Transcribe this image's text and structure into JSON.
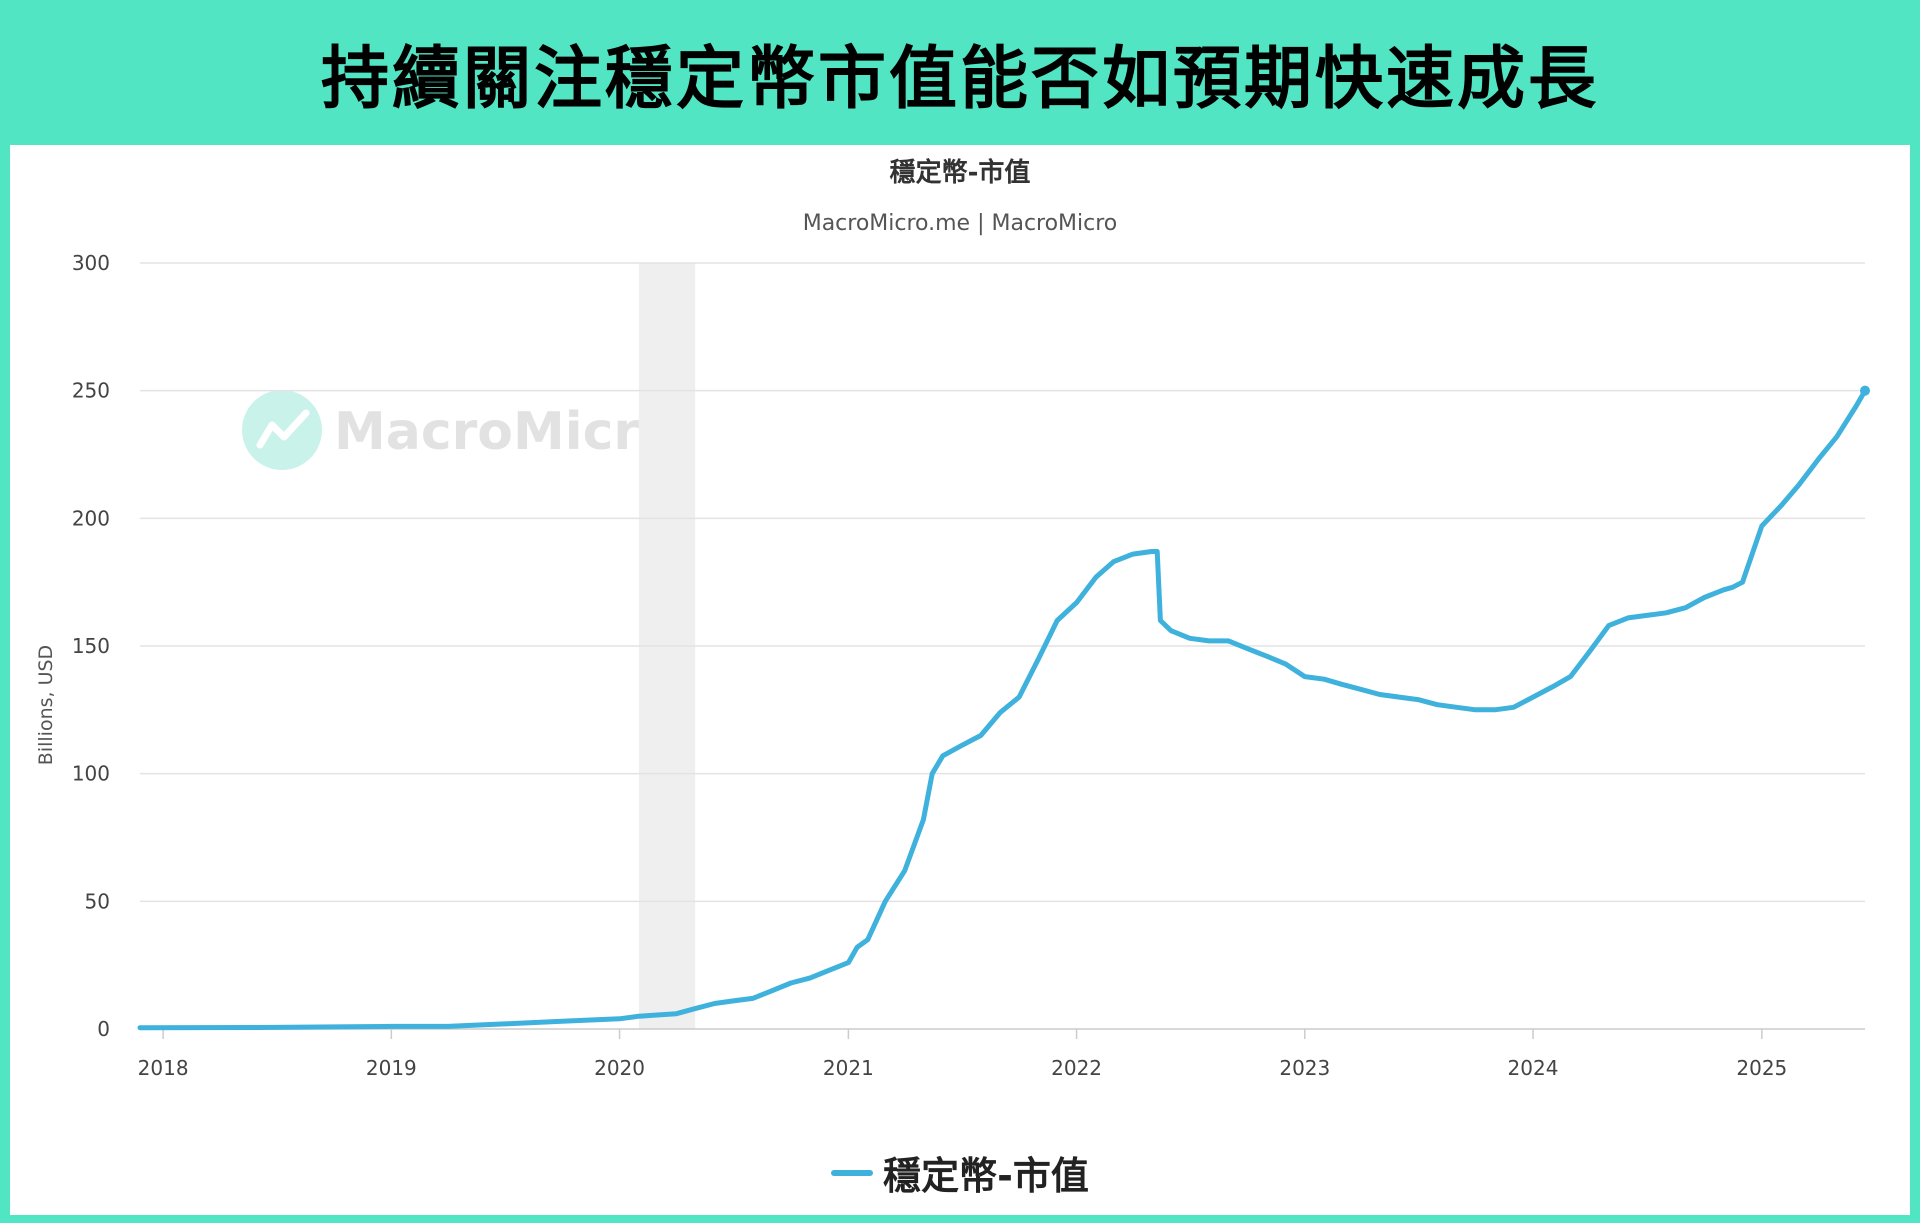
{
  "page": {
    "headline": "持續關注穩定幣市值能否如預期快速成長"
  },
  "colors": {
    "background": "#52e5c3",
    "series": "#3fb1dd",
    "grid": "#e3e3e3",
    "shade": "#efefef",
    "text": "#444444",
    "watermark": "#e2e2e2",
    "watermark_logo": "#c9f3ea"
  },
  "watermark": {
    "text": "MacroMicro"
  },
  "chart_data": {
    "type": "line",
    "title": "穩定幣-市值",
    "subtitle": "MacroMicro.me | MacroMicro",
    "ylabel": "Billions, USD",
    "xlabel": "",
    "ylim": [
      0,
      300
    ],
    "xlim": [
      "2017-11-25",
      "2025-06-15"
    ],
    "yticks": [
      0,
      50,
      100,
      150,
      200,
      250,
      300
    ],
    "xticks": [
      "2018",
      "2019",
      "2020",
      "2021",
      "2022",
      "2023",
      "2024",
      "2025"
    ],
    "grid": true,
    "legend_position": "bottom-center",
    "shaded_regions": [
      {
        "x0": "2020-02-01",
        "x1": "2020-05-01"
      }
    ],
    "series": [
      {
        "name": "穩定幣-市值",
        "x": [
          "2017-11-25",
          "2018-06-01",
          "2019-01-01",
          "2019-04-01",
          "2019-07-01",
          "2019-10-01",
          "2020-01-01",
          "2020-02-01",
          "2020-03-01",
          "2020-04-01",
          "2020-05-01",
          "2020-06-01",
          "2020-07-01",
          "2020-08-01",
          "2020-09-01",
          "2020-10-01",
          "2020-11-01",
          "2020-12-01",
          "2021-01-01",
          "2021-01-15",
          "2021-02-01",
          "2021-03-01",
          "2021-04-01",
          "2021-05-01",
          "2021-05-15",
          "2021-06-01",
          "2021-07-01",
          "2021-08-01",
          "2021-09-01",
          "2021-10-01",
          "2021-11-01",
          "2021-12-01",
          "2022-01-01",
          "2022-02-01",
          "2022-03-01",
          "2022-04-01",
          "2022-05-01",
          "2022-05-10",
          "2022-05-15",
          "2022-06-01",
          "2022-07-01",
          "2022-08-01",
          "2022-09-01",
          "2022-10-01",
          "2022-11-01",
          "2022-12-01",
          "2023-01-01",
          "2023-02-01",
          "2023-03-01",
          "2023-04-01",
          "2023-05-01",
          "2023-06-01",
          "2023-07-01",
          "2023-08-01",
          "2023-09-01",
          "2023-10-01",
          "2023-11-01",
          "2023-12-01",
          "2024-01-01",
          "2024-02-01",
          "2024-03-01",
          "2024-04-01",
          "2024-05-01",
          "2024-06-01",
          "2024-07-01",
          "2024-08-01",
          "2024-09-01",
          "2024-10-01",
          "2024-11-01",
          "2024-11-15",
          "2024-12-01",
          "2025-01-01",
          "2025-02-01",
          "2025-03-01",
          "2025-04-01",
          "2025-05-01",
          "2025-06-01",
          "2025-06-15"
        ],
        "values": [
          0.5,
          0.6,
          1,
          1,
          2,
          3,
          4,
          5,
          5.5,
          6,
          8,
          10,
          11,
          12,
          15,
          18,
          20,
          23,
          26,
          32,
          35,
          50,
          62,
          82,
          100,
          107,
          111,
          115,
          124,
          130,
          145,
          160,
          167,
          177,
          183,
          186,
          187,
          187,
          160,
          156,
          153,
          152,
          152,
          149,
          146,
          143,
          138,
          137,
          135,
          133,
          131,
          130,
          129,
          127,
          126,
          125,
          125,
          126,
          130,
          134,
          138,
          148,
          158,
          161,
          162,
          163,
          165,
          169,
          172,
          173,
          175,
          197,
          205,
          213,
          223,
          232,
          244,
          250
        ]
      }
    ]
  }
}
